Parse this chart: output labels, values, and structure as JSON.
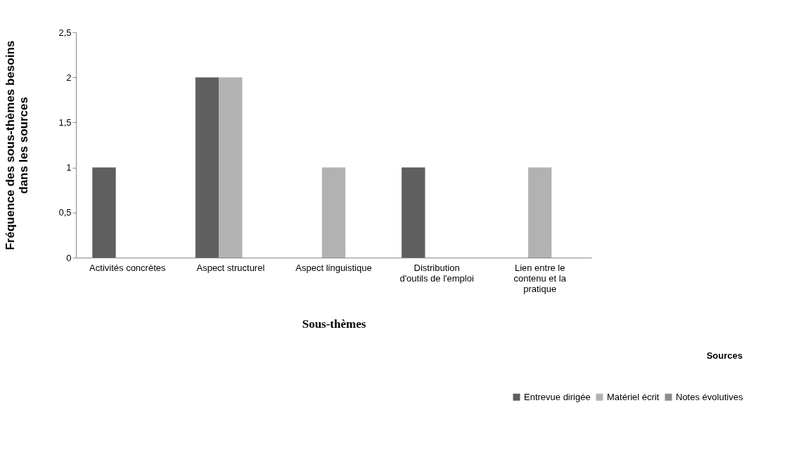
{
  "chart_data": {
    "type": "bar",
    "xlabel": "Sous-thèmes",
    "ylabel": "Fréquence des sous-thèmes besoins dans les sources",
    "legend_title": "Sources",
    "categories": [
      "Activités concrètes",
      "Aspect structurel",
      "Aspect linguistique",
      "Distribution d'outils de l'emploi",
      "Lien entre le contenu et la pratique"
    ],
    "series": [
      {
        "name": "Entrevue dirigée",
        "color": "#5f5f5f",
        "values": [
          1,
          2,
          0,
          1,
          0
        ]
      },
      {
        "name": "Matériel écrit",
        "color": "#b2b2b2",
        "values": [
          0,
          2,
          1,
          0,
          1
        ]
      },
      {
        "name": "Notes évolutives",
        "color": "#8c8c8c",
        "values": [
          0,
          0,
          0,
          0,
          0
        ]
      }
    ],
    "ylim": [
      0,
      2.5
    ],
    "yticks": [
      0,
      {
        "value": 0.5,
        "label": "0,5"
      },
      1,
      {
        "value": 1.5,
        "label": "1,5"
      },
      2,
      {
        "value": 2.5,
        "label": "2,5"
      }
    ],
    "grid": false,
    "legend": "bottom right"
  }
}
